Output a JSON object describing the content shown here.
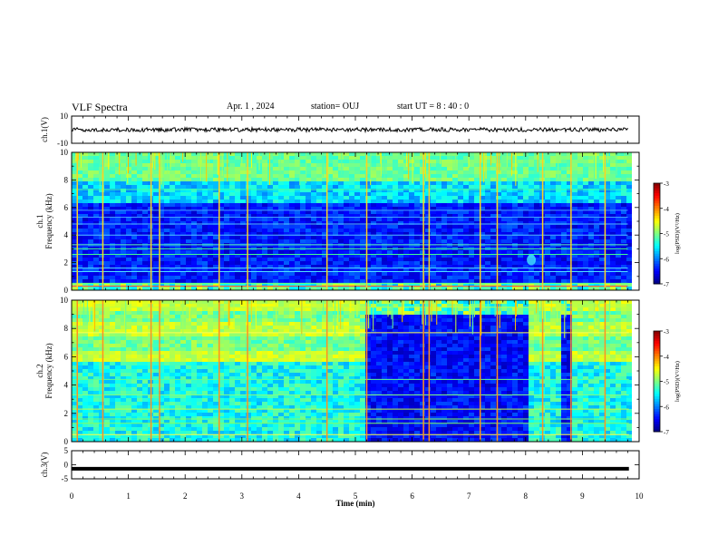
{
  "header": {
    "title": "VLF Spectra",
    "date": "Apr. 1 , 2024",
    "station": "station= OUJ",
    "start": "start UT = 8 : 40 : 0"
  },
  "chart_data": [
    {
      "type": "line",
      "panel": "ch1-waveform",
      "ylabel": "ch.1(V)",
      "ylim": [
        -10,
        10
      ],
      "yticks": [
        "10",
        "-10"
      ],
      "trace_level": 0,
      "trace_amplitude": 1.5,
      "color": "#000000"
    },
    {
      "type": "heatmap",
      "panel": "ch1-spectrogram",
      "ylabel_lines": [
        "ch.1",
        "Frequency (kHz)"
      ],
      "ylim": [
        0,
        10
      ],
      "yticks": [
        "0",
        "2",
        "4",
        "6",
        "8",
        "10"
      ],
      "xlim": [
        0,
        10
      ],
      "data_extent_min": 9.8,
      "colorbar": {
        "range": [
          -7,
          -3
        ],
        "ticks": [
          "-3",
          "-4",
          "-5",
          "-6",
          "-7"
        ],
        "label": "log(PSD)(V²/Hz)"
      }
    },
    {
      "type": "heatmap",
      "panel": "ch2-spectrogram",
      "ylabel_lines": [
        "ch.2",
        "Frequency (kHz)"
      ],
      "ylim": [
        0,
        10
      ],
      "yticks": [
        "0",
        "2",
        "4",
        "6",
        "8",
        "10"
      ],
      "xlim": [
        0,
        10
      ],
      "quiet_intervals_min": [
        [
          5.15,
          8.0
        ],
        [
          8.55,
          8.75
        ]
      ],
      "colorbar": {
        "range": [
          -7,
          -3
        ],
        "ticks": [
          "-3",
          "-4",
          "-5",
          "-6",
          "-7"
        ],
        "label": "log(PSD)(V²/Hz)"
      }
    },
    {
      "type": "line",
      "panel": "ch3-waveform",
      "ylabel": "ch.3(V)",
      "ylim": [
        -5,
        5
      ],
      "yticks": [
        "5",
        "0",
        "-5"
      ],
      "trace_level": -1.4,
      "color": "#000000"
    }
  ],
  "xaxis": {
    "label": "Time (min)",
    "range": [
      0,
      10
    ],
    "ticks": [
      "0",
      "1",
      "2",
      "3",
      "4",
      "5",
      "6",
      "7",
      "8",
      "9",
      "10"
    ]
  }
}
